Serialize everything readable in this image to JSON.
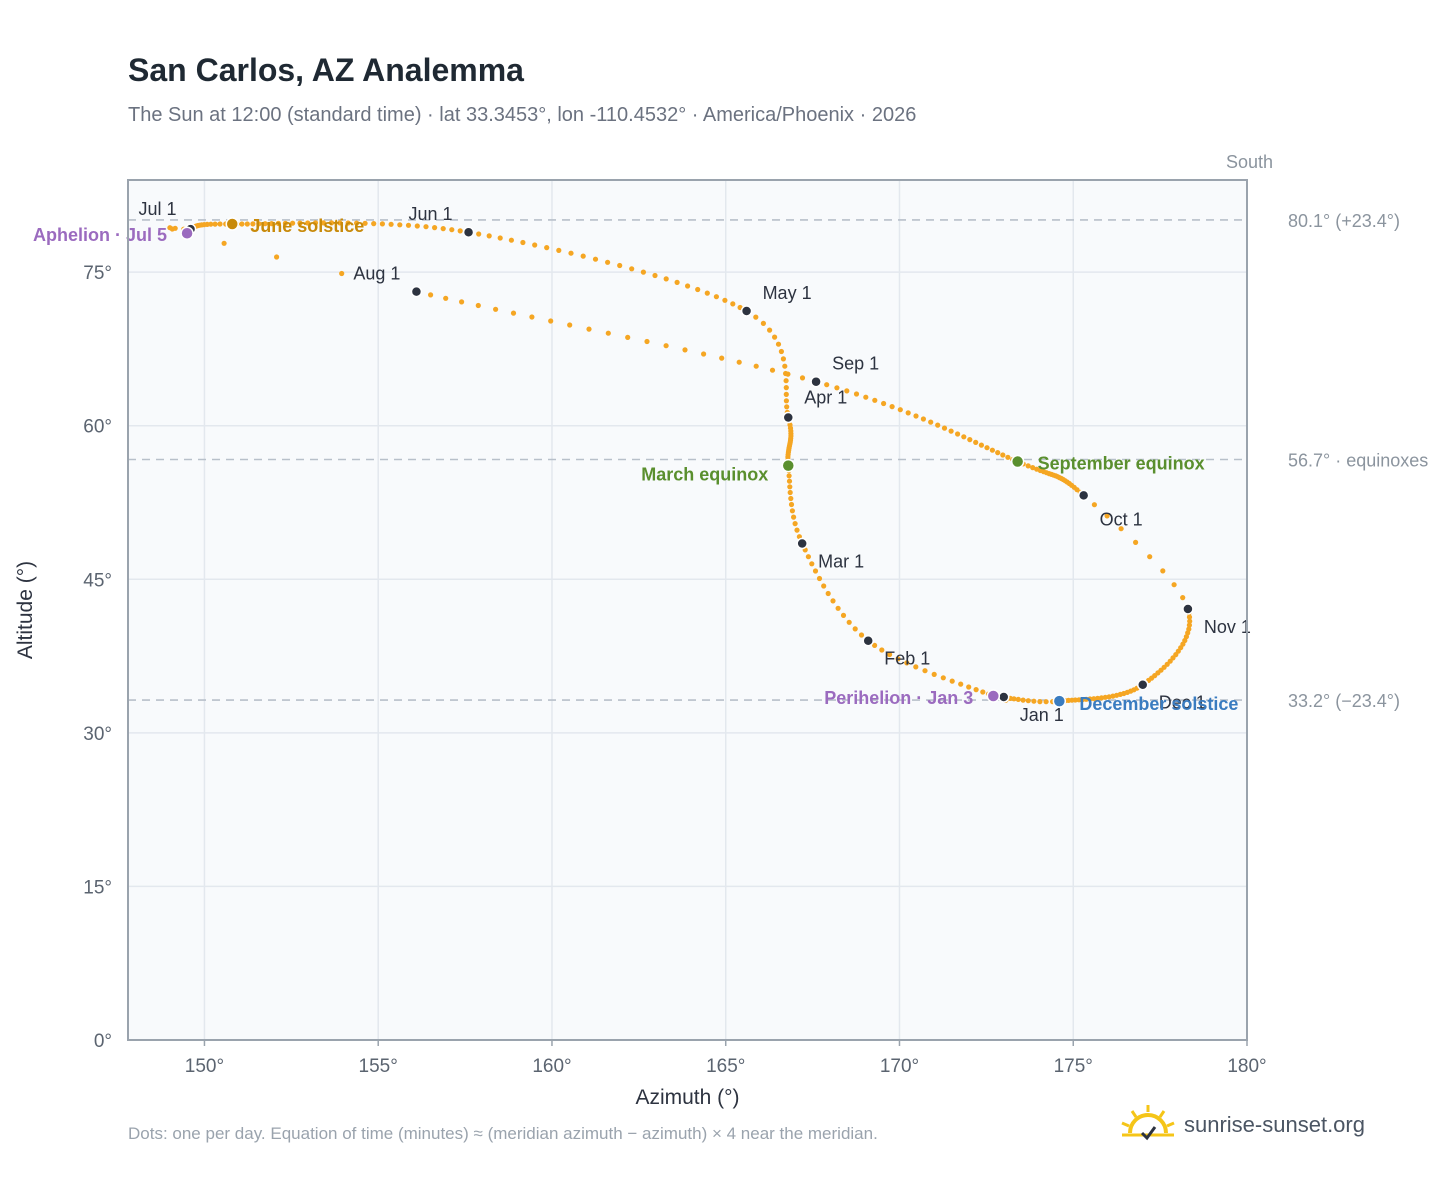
{
  "header": {
    "title": "San Carlos, AZ Analemma",
    "subtitle": "The Sun at 12:00 (standard time) · lat 33.3453°, lon -110.4532° · America/Phoenix · 2026"
  },
  "footer": {
    "note": "Dots: one per day. Equation of time (minutes) ≈ (meridian azimuth − azimuth) × 4 near the meridian.",
    "brand": "sunrise-sunset.org"
  },
  "colors": {
    "curve": "#f5a623",
    "month_marker": "#2d3340",
    "solstice_june": "#c88a0a",
    "equinox": "#5a8f2e",
    "solstice_december": "#3a7cc0",
    "apsis": "#9b6bbf",
    "reference_line": "#b8c0ca",
    "plot_bg": "#f8fafc"
  },
  "chart_data": {
    "type": "scatter",
    "xlabel": "Azimuth (°)",
    "ylabel": "Altitude (°)",
    "xlim": [
      147.8,
      180
    ],
    "ylim": [
      0,
      84
    ],
    "xticks": [
      150,
      155,
      160,
      165,
      170,
      175,
      180
    ],
    "xtick_labels": [
      "150°",
      "155°",
      "160°",
      "165°",
      "170°",
      "175°",
      "180°"
    ],
    "yticks": [
      0,
      15,
      30,
      45,
      60,
      75
    ],
    "ytick_labels": [
      "0°",
      "15°",
      "30°",
      "45°",
      "60°",
      "75°"
    ],
    "grid": true,
    "meridian": {
      "azimuth": 180,
      "label": "South"
    },
    "reference_lines": [
      {
        "altitude": 80.1,
        "label": "80.1° (+23.4°)"
      },
      {
        "altitude": 56.7,
        "label": "56.7° · equinoxes"
      },
      {
        "altitude": 33.2,
        "label": "33.2° (−23.4°)"
      }
    ],
    "daily_series": {
      "description": "one dot per day",
      "control_points": [
        {
          "date": "Jan 1",
          "az": 173.0,
          "alt": 33.5
        },
        {
          "date": "Jan 3",
          "az": 172.7,
          "alt": 33.6
        },
        {
          "date": "Feb 1",
          "az": 169.1,
          "alt": 39.0
        },
        {
          "date": "Mar 1",
          "az": 167.2,
          "alt": 48.5
        },
        {
          "date": "Mar 20",
          "az": 166.8,
          "alt": 56.1
        },
        {
          "date": "Apr 1",
          "az": 166.8,
          "alt": 60.8
        },
        {
          "date": "May 1",
          "az": 165.6,
          "alt": 71.2
        },
        {
          "date": "Jun 1",
          "az": 157.6,
          "alt": 78.9
        },
        {
          "date": "Jun 21",
          "az": 150.8,
          "alt": 79.7
        },
        {
          "date": "Jul 1",
          "az": 149.6,
          "alt": 79.2
        },
        {
          "date": "Jul 5",
          "az": 149.5,
          "alt": 78.8
        },
        {
          "date": "Aug 1",
          "az": 156.1,
          "alt": 73.1
        },
        {
          "date": "Sep 1",
          "az": 167.6,
          "alt": 64.3
        },
        {
          "date": "Sep 23",
          "az": 173.4,
          "alt": 56.5
        },
        {
          "date": "Oct 1",
          "az": 175.3,
          "alt": 53.2
        },
        {
          "date": "Nov 1",
          "az": 178.3,
          "alt": 42.1
        },
        {
          "date": "Dec 1",
          "az": 177.0,
          "alt": 34.7
        },
        {
          "date": "Dec 21",
          "az": 174.6,
          "alt": 33.1
        },
        {
          "date": "Dec 31",
          "az": 173.1,
          "alt": 33.4
        }
      ]
    },
    "month_markers": [
      {
        "label": "Jan 1",
        "az": 173.0,
        "alt": 33.5
      },
      {
        "label": "Feb 1",
        "az": 169.1,
        "alt": 39.0
      },
      {
        "label": "Mar 1",
        "az": 167.2,
        "alt": 48.5
      },
      {
        "label": "Apr 1",
        "az": 166.8,
        "alt": 60.8
      },
      {
        "label": "May 1",
        "az": 165.6,
        "alt": 71.2
      },
      {
        "label": "Jun 1",
        "az": 157.6,
        "alt": 78.9
      },
      {
        "label": "Jul 1",
        "az": 149.6,
        "alt": 79.2
      },
      {
        "label": "Aug 1",
        "az": 156.1,
        "alt": 73.1
      },
      {
        "label": "Sep 1",
        "az": 167.6,
        "alt": 64.3
      },
      {
        "label": "Oct 1",
        "az": 175.3,
        "alt": 53.2
      },
      {
        "label": "Nov 1",
        "az": 178.3,
        "alt": 42.1
      },
      {
        "label": "Dec 1",
        "az": 177.0,
        "alt": 34.7
      }
    ],
    "events": [
      {
        "label": "June solstice",
        "az": 150.8,
        "alt": 79.7,
        "color": "#c88a0a"
      },
      {
        "label": "March equinox",
        "az": 166.8,
        "alt": 56.1,
        "color": "#5a8f2e"
      },
      {
        "label": "September equinox",
        "az": 173.4,
        "alt": 56.5,
        "color": "#5a8f2e"
      },
      {
        "label": "December solstice",
        "az": 174.6,
        "alt": 33.1,
        "color": "#3a7cc0"
      },
      {
        "label": "Aphelion · Jul 5",
        "az": 149.5,
        "alt": 78.8,
        "color": "#9b6bbf"
      },
      {
        "label": "Perihelion · Jan 3",
        "az": 172.7,
        "alt": 33.6,
        "color": "#9b6bbf"
      }
    ]
  }
}
